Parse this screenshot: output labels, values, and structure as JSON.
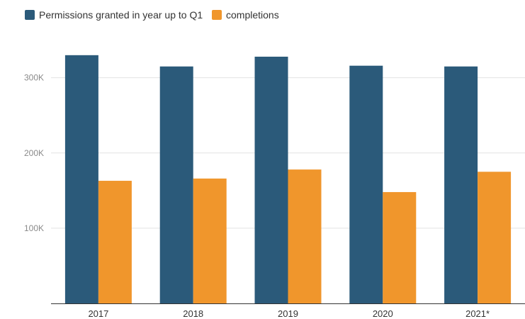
{
  "chart_data": {
    "type": "bar",
    "categories": [
      "2017",
      "2018",
      "2019",
      "2020",
      "2021*"
    ],
    "series": [
      {
        "name": "Permissions granted in year up to Q1",
        "color": "#2b5a7a",
        "values": [
          330000,
          315000,
          328000,
          316000,
          315000
        ]
      },
      {
        "name": "completions",
        "color": "#f0962c",
        "values": [
          163000,
          166000,
          178000,
          148000,
          175000
        ]
      }
    ],
    "y_ticks": [
      {
        "value": 100000,
        "label": "100K"
      },
      {
        "value": 200000,
        "label": "200K"
      },
      {
        "value": 300000,
        "label": "300K"
      }
    ],
    "ylim": [
      0,
      360000
    ],
    "grid": true,
    "legend_position": "top-left",
    "title": "",
    "xlabel": "",
    "ylabel": ""
  }
}
